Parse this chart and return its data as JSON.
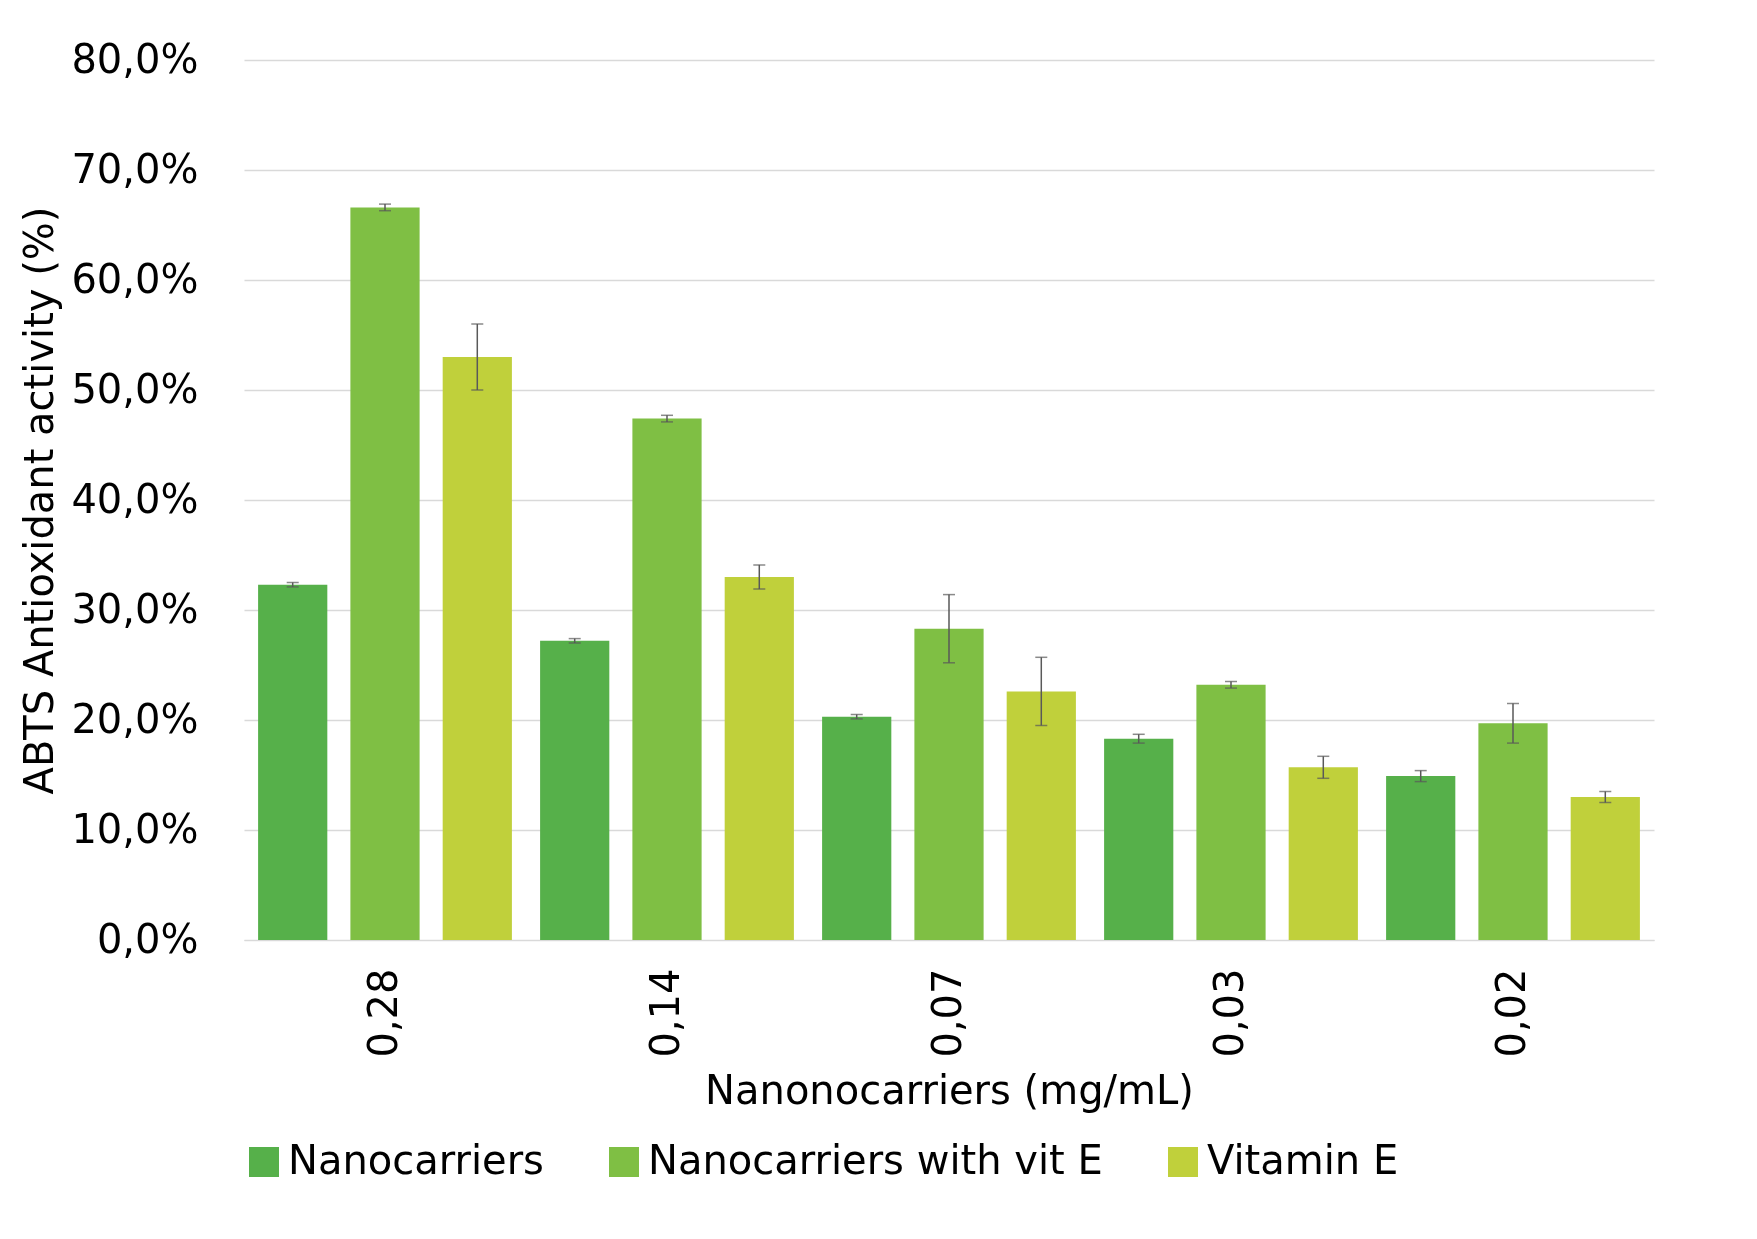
{
  "chart_data": {
    "type": "bar",
    "xlabel": "Nanonocarriers (mg/mL)",
    "ylabel": "ABTS Antioxidant activity (%)",
    "categories": [
      "0,28",
      "0,14",
      "0,07",
      "0,03",
      "0,02"
    ],
    "series": [
      {
        "name": "Nanocarriers",
        "color": "#56b04a",
        "values": [
          32.3,
          27.2,
          20.3,
          18.3,
          14.9
        ],
        "errors": [
          0.2,
          0.2,
          0.2,
          0.4,
          0.5
        ]
      },
      {
        "name": "Nanocarriers with vit E",
        "color": "#7fbf44",
        "values": [
          66.6,
          47.4,
          28.3,
          23.2,
          19.7
        ],
        "errors": [
          0.3,
          0.3,
          3.1,
          0.3,
          1.8
        ]
      },
      {
        "name": "Vitamin E",
        "color": "#c0d03b",
        "values": [
          53.0,
          33.0,
          22.6,
          15.7,
          13.0
        ],
        "errors": [
          3.0,
          1.1,
          3.1,
          1.0,
          0.5
        ]
      }
    ],
    "ylim": [
      0,
      80
    ],
    "yticks": [
      {
        "value": 0,
        "label": "0,0%"
      },
      {
        "value": 10,
        "label": "10,0%"
      },
      {
        "value": 20,
        "label": "20,0%"
      },
      {
        "value": 30,
        "label": "30,0%"
      },
      {
        "value": 40,
        "label": "40,0%"
      },
      {
        "value": 50,
        "label": "50,0%"
      },
      {
        "value": 60,
        "label": "60,0%"
      },
      {
        "value": 70,
        "label": "70,0%"
      },
      {
        "value": 80,
        "label": "80,0%"
      }
    ],
    "grid": "y",
    "legend": "bottom"
  }
}
